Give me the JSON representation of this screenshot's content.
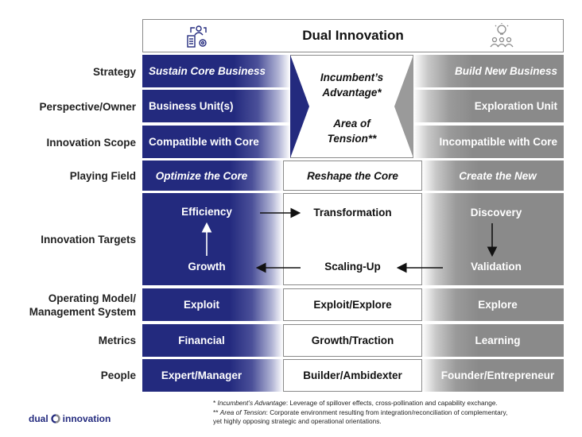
{
  "title": "Dual Innovation",
  "icons": {
    "left": "business-unit-icon",
    "right": "idea-team-icon"
  },
  "colors": {
    "navy": "#232a7e",
    "gray": "#8a8a8a"
  },
  "rows": {
    "strategy": {
      "label": "Strategy",
      "left": "Sustain Core Business",
      "right": "Build New Business"
    },
    "perspective": {
      "label": "Perspective/Owner",
      "left": "Business Unit(s)",
      "right": "Exploration Unit"
    },
    "scope": {
      "label": "Innovation Scope",
      "left": "Compatible with Core",
      "right": "Incompatible with Core"
    },
    "playing_field": {
      "label": "Playing Field",
      "left": "Optimize the Core",
      "mid": "Reshape the Core",
      "right": "Create the New"
    },
    "targets": {
      "label": "Innovation Targets",
      "efficiency": "Efficiency",
      "transformation": "Transformation",
      "discovery": "Discovery",
      "growth": "Growth",
      "scaling": "Scaling-Up",
      "validation": "Validation"
    },
    "operating": {
      "label1": "Operating Model/",
      "label2": "Management System",
      "left": "Exploit",
      "mid": "Exploit/Explore",
      "right": "Explore"
    },
    "metrics": {
      "label": "Metrics",
      "left": "Financial",
      "mid": "Growth/Traction",
      "right": "Learning"
    },
    "people": {
      "label": "People",
      "left": "Expert/Manager",
      "mid": "Builder/Ambidexter",
      "right": "Founder/Entrepreneur"
    }
  },
  "center_box": {
    "line1": "Incumbent’s",
    "line2": "Advantage*",
    "line3": "Area of",
    "line4": "Tension**"
  },
  "footnotes": {
    "f1_prefix": "* ",
    "f1_term": "Incumbent’s Advantage",
    "f1_text": ": Leverage of spillover effects, cross-pollination and capability exchange.",
    "f2_prefix": "** ",
    "f2_term": "Area of Tension",
    "f2_text": ": Corporate environment resulting from integration/reconciliation of complementary,",
    "f2_line2": "yet highly opposing strategic and operational orientations."
  },
  "logo": {
    "word1": "dual",
    "word2": "innovation"
  }
}
